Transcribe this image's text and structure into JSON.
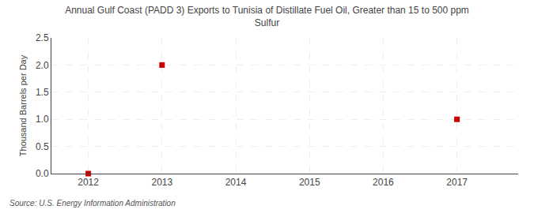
{
  "chart_data": {
    "type": "scatter",
    "title": "Annual Gulf Coast (PADD 3) Exports to Tunisia of Distillate Fuel Oil, Greater than 15 to 500 ppm\nSulfur",
    "ylabel": "Thousand Barrels per Day",
    "annotations": [
      "Source: U.S. Energy Information Administration"
    ],
    "x": [
      2012,
      2013,
      2017
    ],
    "values": [
      0.0,
      2.0,
      1.0
    ],
    "color": "#cc0000",
    "marker": "square",
    "xlim": [
      2011.5,
      2017.83
    ],
    "ylim": [
      0.0,
      2.5
    ],
    "xticks": [
      2012,
      2013,
      2014,
      2015,
      2016,
      2017
    ],
    "yticks": [
      {
        "value": 0.0,
        "label": "0.0"
      },
      0.5,
      {
        "value": 1.0,
        "label": "1.0"
      },
      1.5,
      {
        "value": 2.0,
        "label": "2.0"
      },
      2.5
    ],
    "grid": true
  }
}
